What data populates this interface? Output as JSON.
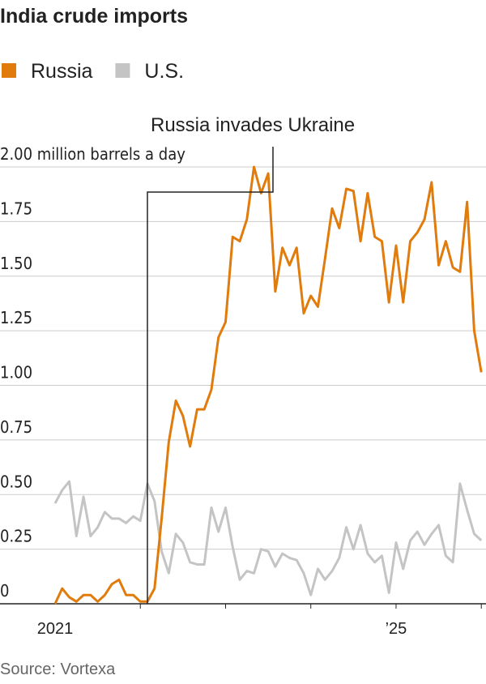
{
  "chart_data": {
    "type": "line",
    "title": "India crude imports",
    "annotation": "Russia invades Ukraine",
    "source": "Source: Vortexa",
    "categories": [
      "2021",
      null,
      null,
      null,
      null,
      null,
      null,
      null,
      null,
      null,
      null,
      null,
      null,
      null,
      null,
      null,
      null,
      null,
      null,
      null,
      null,
      null,
      null,
      null,
      null,
      null,
      null,
      null,
      null,
      null,
      null,
      null,
      null,
      null,
      null,
      null,
      null,
      null,
      null,
      null,
      null,
      null,
      null,
      null,
      null,
      null,
      null,
      null,
      "’25",
      null,
      null,
      null,
      null,
      null,
      null,
      null,
      null,
      null,
      null,
      null,
      null
    ],
    "series": [
      {
        "name": "Russia",
        "color": "#e07b0c",
        "values": [
          0,
          0.07,
          0.03,
          0.01,
          0.04,
          0.04,
          0.01,
          0.04,
          0.09,
          0.11,
          0.04,
          0.04,
          0.01,
          0.01,
          0.07,
          0.39,
          0.74,
          0.93,
          0.86,
          0.72,
          0.89,
          0.89,
          0.98,
          1.22,
          1.29,
          1.68,
          1.66,
          1.76,
          2.0,
          1.88,
          1.97,
          1.43,
          1.63,
          1.55,
          1.63,
          1.33,
          1.41,
          1.36,
          1.58,
          1.81,
          1.72,
          1.9,
          1.89,
          1.66,
          1.88,
          1.68,
          1.66,
          1.38,
          1.64,
          1.38,
          1.66,
          1.7,
          1.76,
          1.93,
          1.55,
          1.66,
          1.54,
          1.52,
          1.84,
          1.25,
          1.06
        ]
      },
      {
        "name": "U.S.",
        "color": "#c4c4c4",
        "values": [
          0.46,
          0.52,
          0.56,
          0.31,
          0.49,
          0.31,
          0.35,
          0.42,
          0.39,
          0.39,
          0.37,
          0.4,
          0.38,
          0.55,
          0.47,
          0.24,
          0.14,
          0.32,
          0.28,
          0.19,
          0.18,
          0.18,
          0.44,
          0.33,
          0.44,
          0.26,
          0.11,
          0.15,
          0.14,
          0.25,
          0.24,
          0.17,
          0.23,
          0.21,
          0.2,
          0.14,
          0.04,
          0.16,
          0.11,
          0.15,
          0.21,
          0.35,
          0.25,
          0.36,
          0.23,
          0.19,
          0.22,
          0.05,
          0.28,
          0.16,
          0.29,
          0.33,
          0.27,
          0.32,
          0.36,
          0.22,
          0.19,
          0.55,
          0.43,
          0.32,
          0.29
        ]
      }
    ],
    "ylim": [
      0,
      2
    ],
    "yticks": [
      0,
      0.25,
      {
        "value": 0.5,
        "label": "0.50"
      },
      0.75,
      {
        "value": 1,
        "label": "1.00"
      },
      1.25,
      {
        "value": 1.5,
        "label": "1.50"
      },
      1.75,
      {
        "value": 2,
        "label": "2.00 million barrels a day"
      }
    ],
    "grid": true
  }
}
